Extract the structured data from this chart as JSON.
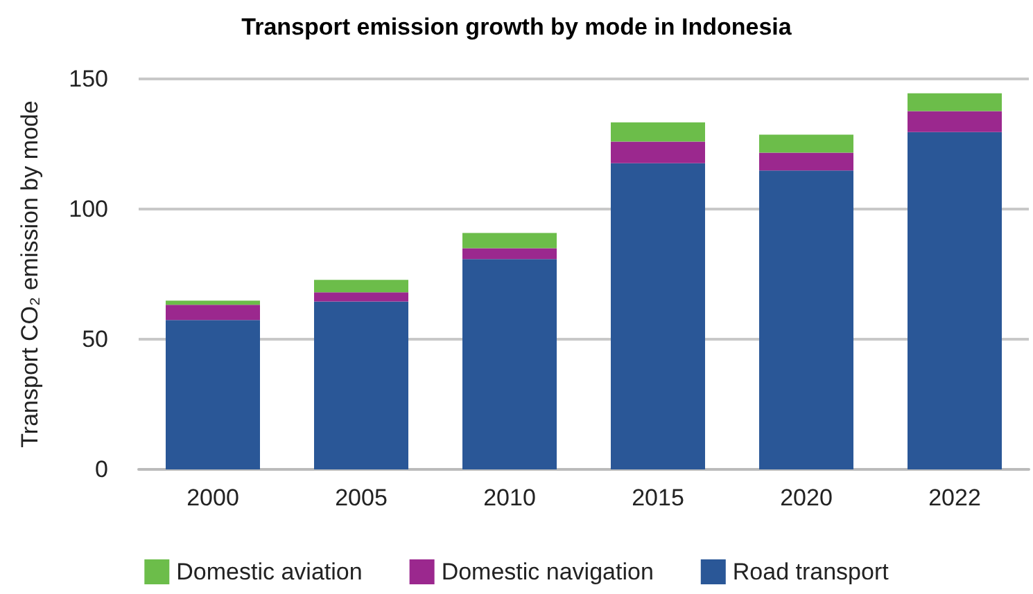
{
  "chart_data": {
    "type": "bar",
    "title": "Transport emission growth by mode in Indonesia",
    "ylabel": "Transport CO₂ emission by mode",
    "categories": [
      "2000",
      "2005",
      "2010",
      "2015",
      "2020",
      "2022"
    ],
    "series": [
      {
        "name": "Road transport",
        "color": "#2a5797",
        "values": [
          57.4,
          64.5,
          80.8,
          117.6,
          114.8,
          129.6
        ]
      },
      {
        "name": "Domestic navigation",
        "color": "#9b288e",
        "values": [
          5.8,
          3.5,
          4.2,
          8.3,
          6.9,
          8.0
        ]
      },
      {
        "name": "Domestic aviation",
        "color": "#6cbd4a",
        "values": [
          1.6,
          4.8,
          5.8,
          7.4,
          6.9,
          6.9
        ]
      }
    ],
    "stacked": true,
    "ylim": [
      0,
      150
    ],
    "yticks": [
      0,
      50,
      100,
      150
    ],
    "grid": "y",
    "legend": "bottom"
  }
}
